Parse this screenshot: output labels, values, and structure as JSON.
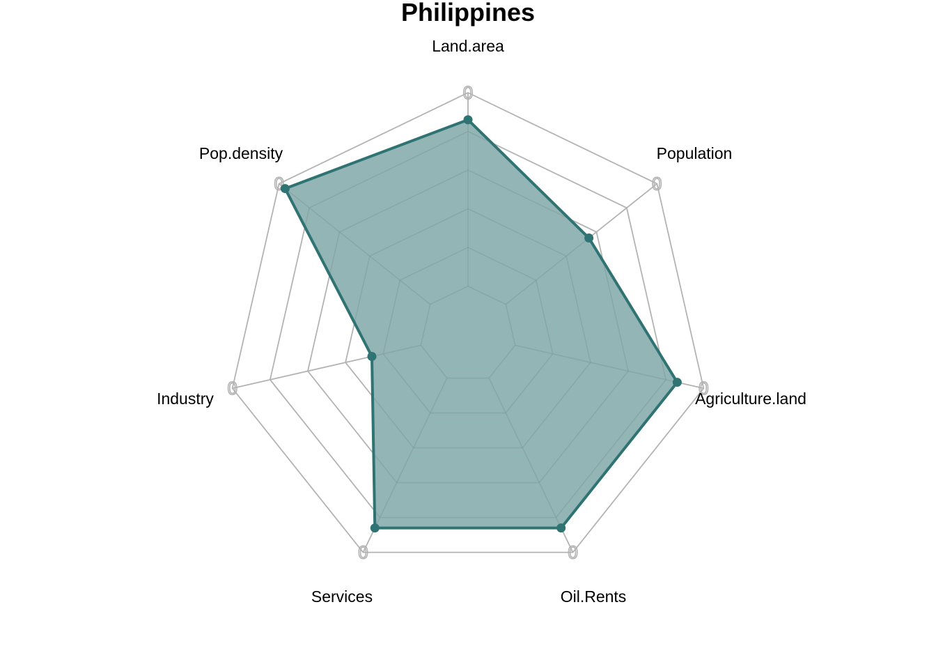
{
  "chart_data": {
    "type": "radar",
    "title": "Philippines",
    "axes": [
      "Land.area",
      "Population",
      "Agriculture.land",
      "Oil.Rents",
      "Services",
      "Industry",
      "Pop.density"
    ],
    "values": [
      0.86,
      0.55,
      0.86,
      0.86,
      0.86,
      0.26,
      0.96
    ],
    "range": [
      0,
      1
    ],
    "grid_levels": 5,
    "axis_tick_label": "0",
    "colors": {
      "series_line": "#2f7373",
      "series_fill": "#94b5b6",
      "grid": "#b3b3b3"
    }
  }
}
